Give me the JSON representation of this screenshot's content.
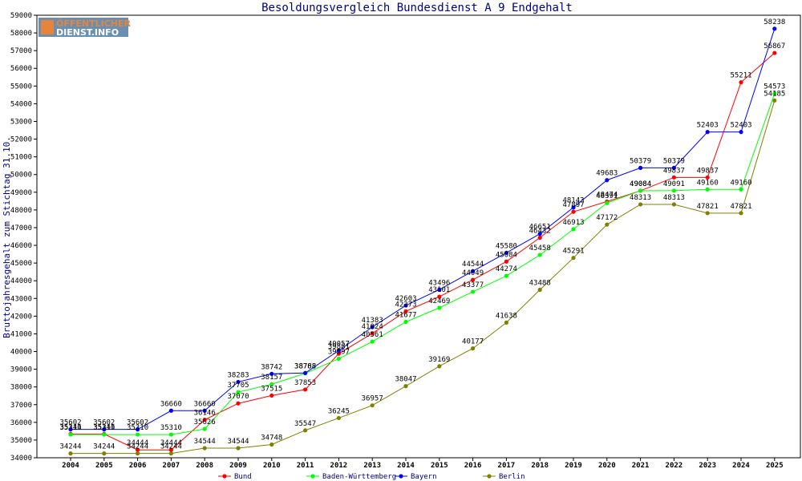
{
  "logo": {
    "line1": "ÖFFENTLICHER",
    "line2": "DIENST.INFO",
    "accent_color": "#e8833a",
    "panel_color": "#6b8fb0"
  },
  "chart_data": {
    "type": "line",
    "title": "Besoldungsvergleich Bundesdienst A 9 Endgehalt",
    "xlabel": "",
    "ylabel": "Bruttojahresgehalt zum Stichtag 31.10.",
    "ylim": [
      34000,
      59000
    ],
    "yticks": [
      34000,
      35000,
      36000,
      37000,
      38000,
      39000,
      40000,
      41000,
      42000,
      43000,
      44000,
      45000,
      46000,
      47000,
      48000,
      49000,
      50000,
      51000,
      52000,
      53000,
      54000,
      55000,
      56000,
      57000,
      58000,
      59000
    ],
    "grid": false,
    "legend_position": "bottom",
    "categories": [
      "2004",
      "2005",
      "2006",
      "2007",
      "2008",
      "2009",
      "2010",
      "2011",
      "2012",
      "2013",
      "2014",
      "2015",
      "2016",
      "2017",
      "2018",
      "2019",
      "2020",
      "2021",
      "2022",
      "2023",
      "2024",
      "2025"
    ],
    "series": [
      {
        "name": "Bund",
        "color": "#ff0000",
        "values": [
          35341,
          35341,
          34444,
          34444,
          36146,
          37070,
          37515,
          37853,
          39881,
          41024,
          42273,
          43101,
          44049,
          45084,
          46432,
          47897,
          48474,
          49084,
          49837,
          49837,
          55211,
          56867
        ]
      },
      {
        "name": "Baden-Württemberg",
        "color": "#00ff00",
        "values": [
          35310,
          35310,
          35310,
          35310,
          35626,
          37705,
          38157,
          38768,
          39597,
          40561,
          41677,
          42469,
          43377,
          44274,
          45458,
          46913,
          48391,
          49084,
          49091,
          49160,
          49160,
          54573
        ]
      },
      {
        "name": "Bayern",
        "color": "#0000ff",
        "values": [
          35602,
          35602,
          35602,
          36660,
          36660,
          38283,
          38742,
          38788,
          40057,
          41383,
          42603,
          43496,
          44544,
          45580,
          46651,
          48143,
          49683,
          50379,
          50379,
          52403,
          52403,
          58238
        ]
      },
      {
        "name": "Berlin",
        "color": "#808000",
        "values": [
          34244,
          34244,
          34244,
          34244,
          34544,
          34544,
          34748,
          35547,
          36245,
          36957,
          38047,
          39169,
          40177,
          41638,
          43488,
          45291,
          47172,
          48313,
          48313,
          47821,
          47821,
          54185
        ]
      }
    ]
  }
}
